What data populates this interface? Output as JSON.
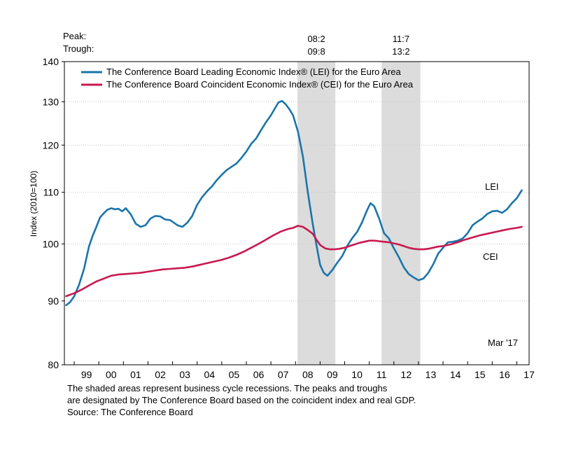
{
  "header": {
    "peak_label": "Peak:",
    "trough_label": "Trough:"
  },
  "recessions": [
    {
      "peak": "08:2",
      "trough": "09:8",
      "start": 2008.08,
      "end": 2009.62
    },
    {
      "peak": "11:7",
      "trough": "13:2",
      "start": 2011.5,
      "end": 2013.08
    }
  ],
  "legend": [
    {
      "label": "The Conference Board Leading Economic Index® (LEI) for the Euro Area",
      "color": "#1a75a9"
    },
    {
      "label": "The Conference Board Coincident Economic Index® (CEI) for the Euro Area",
      "color": "#c8194f"
    }
  ],
  "annotations": {
    "lei": "LEI",
    "cei": "CEI",
    "date": "Mar '17"
  },
  "footnote": {
    "line1": "The shaded areas represent business cycle recessions. The peaks and troughs",
    "line2": "are designated by The Conference Board based on the coincident index and real GDP.",
    "line3": "Source: The Conference Board"
  },
  "chart_data": {
    "type": "line",
    "ylabel": "Index (2010=100)",
    "xlabel": "",
    "y_scale": "log",
    "ylim": [
      80,
      140
    ],
    "yticks": [
      80,
      90,
      100,
      110,
      120,
      130,
      140
    ],
    "xlim": [
      1998.6,
      2017.5
    ],
    "xticks": [
      {
        "label": "99",
        "value": 1999
      },
      {
        "label": "00",
        "value": 2000
      },
      {
        "label": "01",
        "value": 2001
      },
      {
        "label": "02",
        "value": 2002
      },
      {
        "label": "03",
        "value": 2003
      },
      {
        "label": "04",
        "value": 2004
      },
      {
        "label": "05",
        "value": 2005
      },
      {
        "label": "06",
        "value": 2006
      },
      {
        "label": "07",
        "value": 2007
      },
      {
        "label": "08",
        "value": 2008
      },
      {
        "label": "09",
        "value": 2009
      },
      {
        "label": "10",
        "value": 2010
      },
      {
        "label": "11",
        "value": 2011
      },
      {
        "label": "12",
        "value": 2012
      },
      {
        "label": "13",
        "value": 2013
      },
      {
        "label": "14",
        "value": 2014
      },
      {
        "label": "15",
        "value": 2015
      },
      {
        "label": "16",
        "value": 2016
      },
      {
        "label": "17",
        "value": 2017
      }
    ],
    "grid": "horizontal",
    "legend_position": "top-left",
    "series": [
      {
        "name": "LEI",
        "color": "#1a75a9",
        "x": [
          1998.67,
          1998.83,
          1999.0,
          1999.2,
          1999.4,
          1999.6,
          1999.75,
          1999.9,
          2000.05,
          2000.2,
          2000.35,
          2000.5,
          2000.65,
          2000.8,
          2000.95,
          2001.1,
          2001.3,
          2001.5,
          2001.7,
          2001.9,
          2002.1,
          2002.3,
          2002.5,
          2002.7,
          2002.9,
          2003.05,
          2003.2,
          2003.4,
          2003.6,
          2003.8,
          2004.0,
          2004.2,
          2004.4,
          2004.6,
          2004.8,
          2005.0,
          2005.2,
          2005.4,
          2005.6,
          2005.8,
          2006.0,
          2006.2,
          2006.4,
          2006.6,
          2006.8,
          2007.0,
          2007.15,
          2007.3,
          2007.45,
          2007.6,
          2007.75,
          2007.9,
          2008.1,
          2008.3,
          2008.5,
          2008.7,
          2008.85,
          2009.0,
          2009.15,
          2009.3,
          2009.5,
          2009.7,
          2009.9,
          2010.1,
          2010.3,
          2010.5,
          2010.7,
          2010.9,
          2011.05,
          2011.2,
          2011.4,
          2011.6,
          2011.8,
          2012.0,
          2012.2,
          2012.4,
          2012.6,
          2012.8,
          2013.0,
          2013.2,
          2013.4,
          2013.6,
          2013.8,
          2014.0,
          2014.2,
          2014.4,
          2014.6,
          2014.8,
          2015.0,
          2015.2,
          2015.4,
          2015.6,
          2015.8,
          2016.0,
          2016.2,
          2016.4,
          2016.6,
          2016.8,
          2017.0,
          2017.2
        ],
        "values": [
          89.3,
          89.8,
          90.8,
          92.8,
          95.5,
          99.5,
          101.5,
          103.2,
          105.0,
          105.8,
          106.5,
          106.8,
          106.6,
          106.7,
          106.2,
          106.8,
          105.6,
          103.8,
          103.2,
          103.5,
          104.8,
          105.3,
          105.2,
          104.6,
          104.5,
          104.0,
          103.5,
          103.2,
          104.0,
          105.3,
          107.5,
          109.0,
          110.2,
          111.2,
          112.5,
          113.6,
          114.6,
          115.3,
          116.0,
          117.2,
          118.6,
          120.3,
          121.5,
          123.4,
          125.2,
          126.8,
          128.3,
          129.8,
          130.2,
          129.4,
          128.2,
          126.8,
          123.0,
          117.5,
          110.0,
          103.8,
          99.8,
          96.2,
          94.8,
          94.3,
          95.3,
          96.6,
          97.8,
          99.6,
          101.0,
          102.2,
          104.0,
          106.3,
          107.8,
          107.2,
          104.8,
          102.0,
          101.0,
          99.2,
          97.6,
          95.8,
          94.6,
          94.0,
          93.5,
          93.8,
          94.8,
          96.3,
          98.2,
          99.3,
          100.3,
          100.4,
          100.6,
          101.0,
          102.0,
          103.5,
          104.2,
          104.8,
          105.7,
          106.2,
          106.3,
          105.9,
          106.6,
          107.8,
          108.8,
          110.4
        ]
      },
      {
        "name": "CEI",
        "color": "#c8194f",
        "x": [
          1998.67,
          1999.0,
          1999.3,
          1999.6,
          1999.9,
          2000.2,
          2000.5,
          2000.8,
          2001.1,
          2001.4,
          2001.7,
          2002.0,
          2002.3,
          2002.6,
          2002.9,
          2003.2,
          2003.5,
          2003.8,
          2004.1,
          2004.4,
          2004.7,
          2005.0,
          2005.3,
          2005.6,
          2005.9,
          2006.2,
          2006.5,
          2006.8,
          2007.1,
          2007.4,
          2007.7,
          2007.9,
          2008.1,
          2008.3,
          2008.5,
          2008.7,
          2008.85,
          2009.0,
          2009.2,
          2009.4,
          2009.6,
          2009.8,
          2010.0,
          2010.2,
          2010.4,
          2010.6,
          2010.8,
          2011.0,
          2011.2,
          2011.4,
          2011.6,
          2011.8,
          2012.0,
          2012.2,
          2012.4,
          2012.6,
          2012.8,
          2013.0,
          2013.2,
          2013.4,
          2013.6,
          2013.8,
          2014.0,
          2014.3,
          2014.6,
          2014.9,
          2015.2,
          2015.5,
          2015.8,
          2016.1,
          2016.4,
          2016.7,
          2017.0,
          2017.2
        ],
        "values": [
          90.8,
          91.3,
          91.9,
          92.6,
          93.3,
          93.8,
          94.3,
          94.5,
          94.6,
          94.7,
          94.8,
          95.0,
          95.2,
          95.4,
          95.5,
          95.6,
          95.7,
          95.9,
          96.2,
          96.5,
          96.8,
          97.1,
          97.5,
          98.0,
          98.6,
          99.3,
          100.0,
          100.8,
          101.6,
          102.3,
          102.8,
          103.0,
          103.4,
          103.2,
          102.6,
          101.9,
          100.8,
          99.8,
          99.2,
          99.0,
          99.0,
          99.1,
          99.3,
          99.6,
          99.9,
          100.2,
          100.4,
          100.6,
          100.6,
          100.5,
          100.4,
          100.3,
          100.1,
          99.9,
          99.6,
          99.3,
          99.1,
          99.0,
          99.0,
          99.1,
          99.3,
          99.5,
          99.6,
          99.9,
          100.3,
          100.8,
          101.2,
          101.6,
          101.9,
          102.2,
          102.5,
          102.8,
          103.0,
          103.2
        ]
      }
    ]
  }
}
